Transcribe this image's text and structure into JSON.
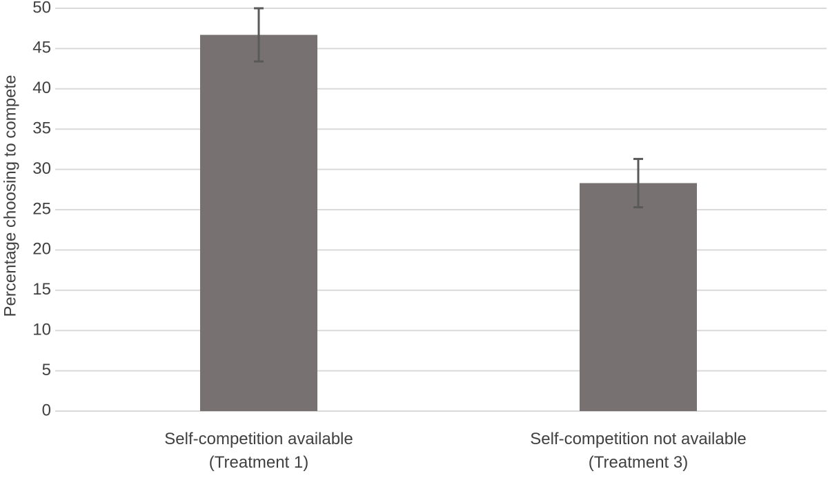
{
  "chart_data": {
    "type": "bar",
    "y_label": "Percentage choosing to compete",
    "categories": [
      "Self-competition available\n(Treatment 1)",
      "Self-competition not available\n(Treatment 3)"
    ],
    "values": [
      46.7,
      28.3
    ],
    "errors": [
      3.3,
      3
    ],
    "color": "#787171",
    "error_color": "#595959",
    "ylim": [
      0,
      50
    ],
    "yticks": [
      0,
      5,
      10,
      15,
      20,
      25,
      30,
      35,
      40,
      45,
      50
    ],
    "grid": true
  }
}
